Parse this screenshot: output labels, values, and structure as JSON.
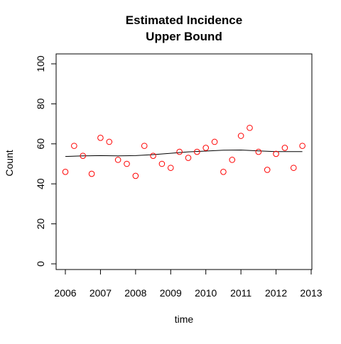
{
  "chart_data": {
    "type": "scatter",
    "title_lines": [
      "Estimated Incidence",
      "Upper Bound"
    ],
    "xlabel": "time",
    "ylabel": "Count",
    "xlim": [
      2006,
      2013
    ],
    "ylim": [
      0,
      100
    ],
    "x_ticks": [
      2006,
      2007,
      2008,
      2009,
      2010,
      2011,
      2012,
      2013
    ],
    "y_ticks": [
      0,
      20,
      40,
      60,
      80,
      100
    ],
    "grid": false,
    "legend": "none",
    "points": {
      "color": "#ff0000",
      "x": [
        2006.0,
        2006.25,
        2006.5,
        2006.75,
        2007.0,
        2007.25,
        2007.5,
        2007.75,
        2008.0,
        2008.25,
        2008.5,
        2008.75,
        2009.0,
        2009.25,
        2009.5,
        2009.75,
        2010.0,
        2010.25,
        2010.5,
        2010.75,
        2011.0,
        2011.25,
        2011.5,
        2011.75,
        2012.0,
        2012.25,
        2012.5,
        2012.75
      ],
      "y": [
        46,
        59,
        54,
        45,
        63,
        61,
        52,
        50,
        44,
        59,
        54,
        50,
        48,
        56,
        53,
        56,
        58,
        61,
        46,
        52,
        64,
        68,
        56,
        47,
        55,
        58,
        48,
        59
      ]
    },
    "trend_line": {
      "color": "#000000",
      "x": [
        2006.0,
        2006.5,
        2007.0,
        2007.5,
        2008.0,
        2008.5,
        2009.0,
        2009.5,
        2010.0,
        2010.5,
        2011.0,
        2011.5,
        2012.0,
        2012.5,
        2012.75
      ],
      "y": [
        53.7,
        54.0,
        54.1,
        54.0,
        54.1,
        54.6,
        55.3,
        56.0,
        56.4,
        56.8,
        56.9,
        56.5,
        56.1,
        56.1,
        56.1
      ]
    }
  }
}
